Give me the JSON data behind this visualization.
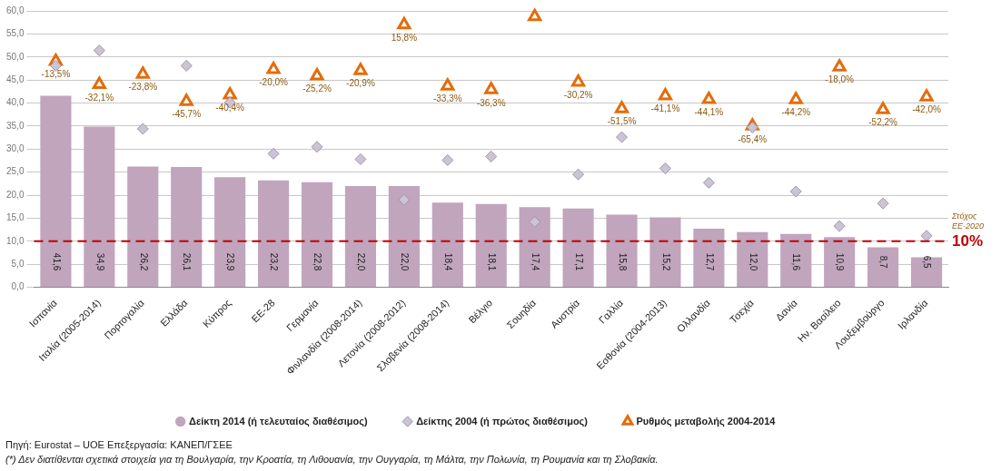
{
  "chart_data": {
    "type": "bar",
    "categories": [
      "Ισπανία",
      "Ιταλία (2005-2014)",
      "Πορτογαλία",
      "Ελλάδα",
      "Κύπρος",
      "ΕΕ-28",
      "Γερμανία",
      "Φινλανδία (2008-2014)",
      "Λετονία (2008-2012)",
      "Σλοβενία (2008-2014)",
      "Βέλγιο",
      "Σουηδία",
      "Αυστρία",
      "Γαλλία",
      "Εσθονία (2004-2013)",
      "Ολλανδία",
      "Τσεχία",
      "Δανία",
      "Ην. Βασίλειο",
      "Λουξεμβούργο",
      "Ιρλανδία"
    ],
    "series": [
      {
        "name": "Δείκτη 2014 (ή τελευταίος διαθέσιμος)",
        "color": "#c0a5bd",
        "values": [
          41.6,
          34.9,
          26.2,
          26.1,
          23.9,
          23.2,
          22.8,
          22.0,
          22.0,
          18.4,
          18.1,
          17.4,
          17.1,
          15.8,
          15.2,
          12.7,
          12.0,
          11.6,
          10.9,
          8.7,
          6.5
        ],
        "value_labels": [
          "41,6",
          "34,9",
          "26,2",
          "26,1",
          "23,9",
          "23,2",
          "22,8",
          "22,0",
          "22,0",
          "18,4",
          "18,1",
          "17,4",
          "17,1",
          "15,8",
          "15,2",
          "12,7",
          "12,0",
          "11,6",
          "10,9",
          "8,7",
          "6,5"
        ]
      },
      {
        "name": "Δείκτης 2004 (ή πρώτος διαθέσιμος)",
        "type": "scatter",
        "marker": "diamond",
        "color": "#c9c5d2",
        "values": [
          48.1,
          51.4,
          34.4,
          48.1,
          40.1,
          29.0,
          30.5,
          27.8,
          19.0,
          27.6,
          28.4,
          14.2,
          24.5,
          32.6,
          25.8,
          22.7,
          34.7,
          20.8,
          13.3,
          18.2,
          11.2
        ]
      },
      {
        "name": "Ρυθμός μεταβολής 2004-2014",
        "type": "scatter",
        "marker": "triangle",
        "axis": "y2",
        "color": "#e46c0a",
        "values": [
          -13.5,
          -32.1,
          -23.8,
          -45.7,
          -40.4,
          -20.0,
          -25.2,
          -20.9,
          15.8,
          -33.3,
          -36.3,
          22.5,
          -30.2,
          -51.5,
          -41.1,
          -44.1,
          -65.4,
          -44.2,
          -18.0,
          -52.2,
          -42.0
        ],
        "value_labels": [
          "-13,5%",
          "-32,1%",
          "-23,8%",
          "-45,7%",
          "-40,4%",
          "-20,0%",
          "-25,2%",
          "-20,9%",
          "15,8%",
          "-33,3%",
          "-36,3%",
          null,
          "-30,2%",
          "-51,5%",
          "-41,1%",
          "-44,1%",
          "-65,4%",
          "-44,2%",
          "-18,0%",
          "-52,2%",
          "-42,0%"
        ]
      }
    ],
    "ylim": [
      0,
      60
    ],
    "yticks": [
      {
        "value": 0,
        "label": "0,0"
      },
      {
        "value": 5,
        "label": "5,0"
      },
      {
        "value": 10,
        "label": "10,0"
      },
      {
        "value": 15,
        "label": "15,0"
      },
      {
        "value": 20,
        "label": "20,0"
      },
      {
        "value": 25,
        "label": "25,0"
      },
      {
        "value": 30,
        "label": "30,0"
      },
      {
        "value": 35,
        "label": "35,0"
      },
      {
        "value": 40,
        "label": "40,0"
      },
      {
        "value": 45,
        "label": "45,0"
      },
      {
        "value": 50,
        "label": "50,0"
      },
      {
        "value": 55,
        "label": "55,0"
      },
      {
        "value": 60,
        "label": "60,0"
      }
    ],
    "y2lim": [
      -195,
      27
    ],
    "tick_labels": "y",
    "grid": "y",
    "legend": "bottom",
    "ref_lines": [
      {
        "axis": "y",
        "value": 10,
        "label": "10%",
        "color": "#c00000",
        "line_style": "dashed"
      }
    ],
    "annotations": [
      "Στόχος ΕΕ-2020",
      "Πηγή: Eurostat – UOE Επεξεργασία: ΚΑΝΕΠ/ΓΣΕΕ",
      "(*) Δεν διατίθενται σχετικά στοιχεία για τη Βουλγαρία, την Κροατία, τη Λιθουανία, την Ουγγαρία, τη Μάλτα, την Πολωνία, τη Ρουμανία και τη Σλοβακία."
    ]
  }
}
